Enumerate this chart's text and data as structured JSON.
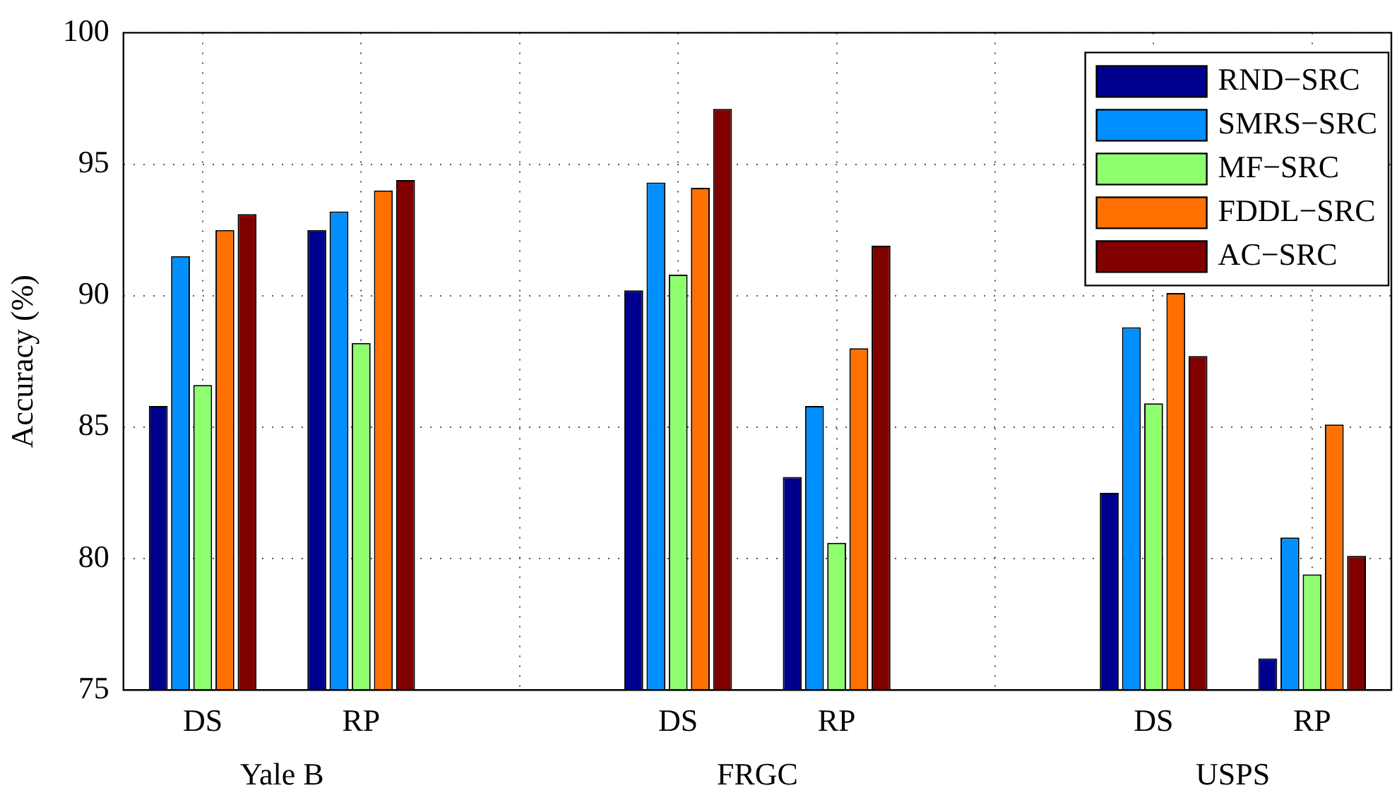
{
  "chart_data": {
    "type": "bar",
    "ylabel": "Accuracy (%)",
    "categories": [
      "DS",
      "RP",
      null,
      "DS",
      "RP",
      null,
      "DS",
      "RP"
    ],
    "series": [
      {
        "name": "RND−SRC",
        "color": "#00008f",
        "values": [
          85.8,
          92.5,
          null,
          90.2,
          83.1,
          null,
          82.5,
          76.2
        ]
      },
      {
        "name": "SMRS−SRC",
        "color": "#008fff",
        "values": [
          91.5,
          93.2,
          null,
          94.3,
          85.8,
          null,
          88.8,
          80.8
        ]
      },
      {
        "name": "MF−SRC",
        "color": "#8fff6f",
        "values": [
          86.6,
          88.2,
          null,
          90.8,
          80.6,
          null,
          85.9,
          79.4
        ]
      },
      {
        "name": "FDDL−SRC",
        "color": "#ff7000",
        "values": [
          92.5,
          94.0,
          null,
          94.1,
          88.0,
          null,
          90.1,
          85.1
        ]
      },
      {
        "name": "AC−SRC",
        "color": "#800000",
        "values": [
          93.1,
          94.4,
          null,
          97.1,
          91.9,
          null,
          87.7,
          80.1
        ]
      }
    ],
    "annotations": [
      "Yale B",
      "FRGC",
      "USPS"
    ],
    "ylim": [
      75,
      100
    ],
    "yticks": [
      75,
      80,
      85,
      90,
      95,
      100
    ],
    "grid": true,
    "legend": "top right"
  }
}
